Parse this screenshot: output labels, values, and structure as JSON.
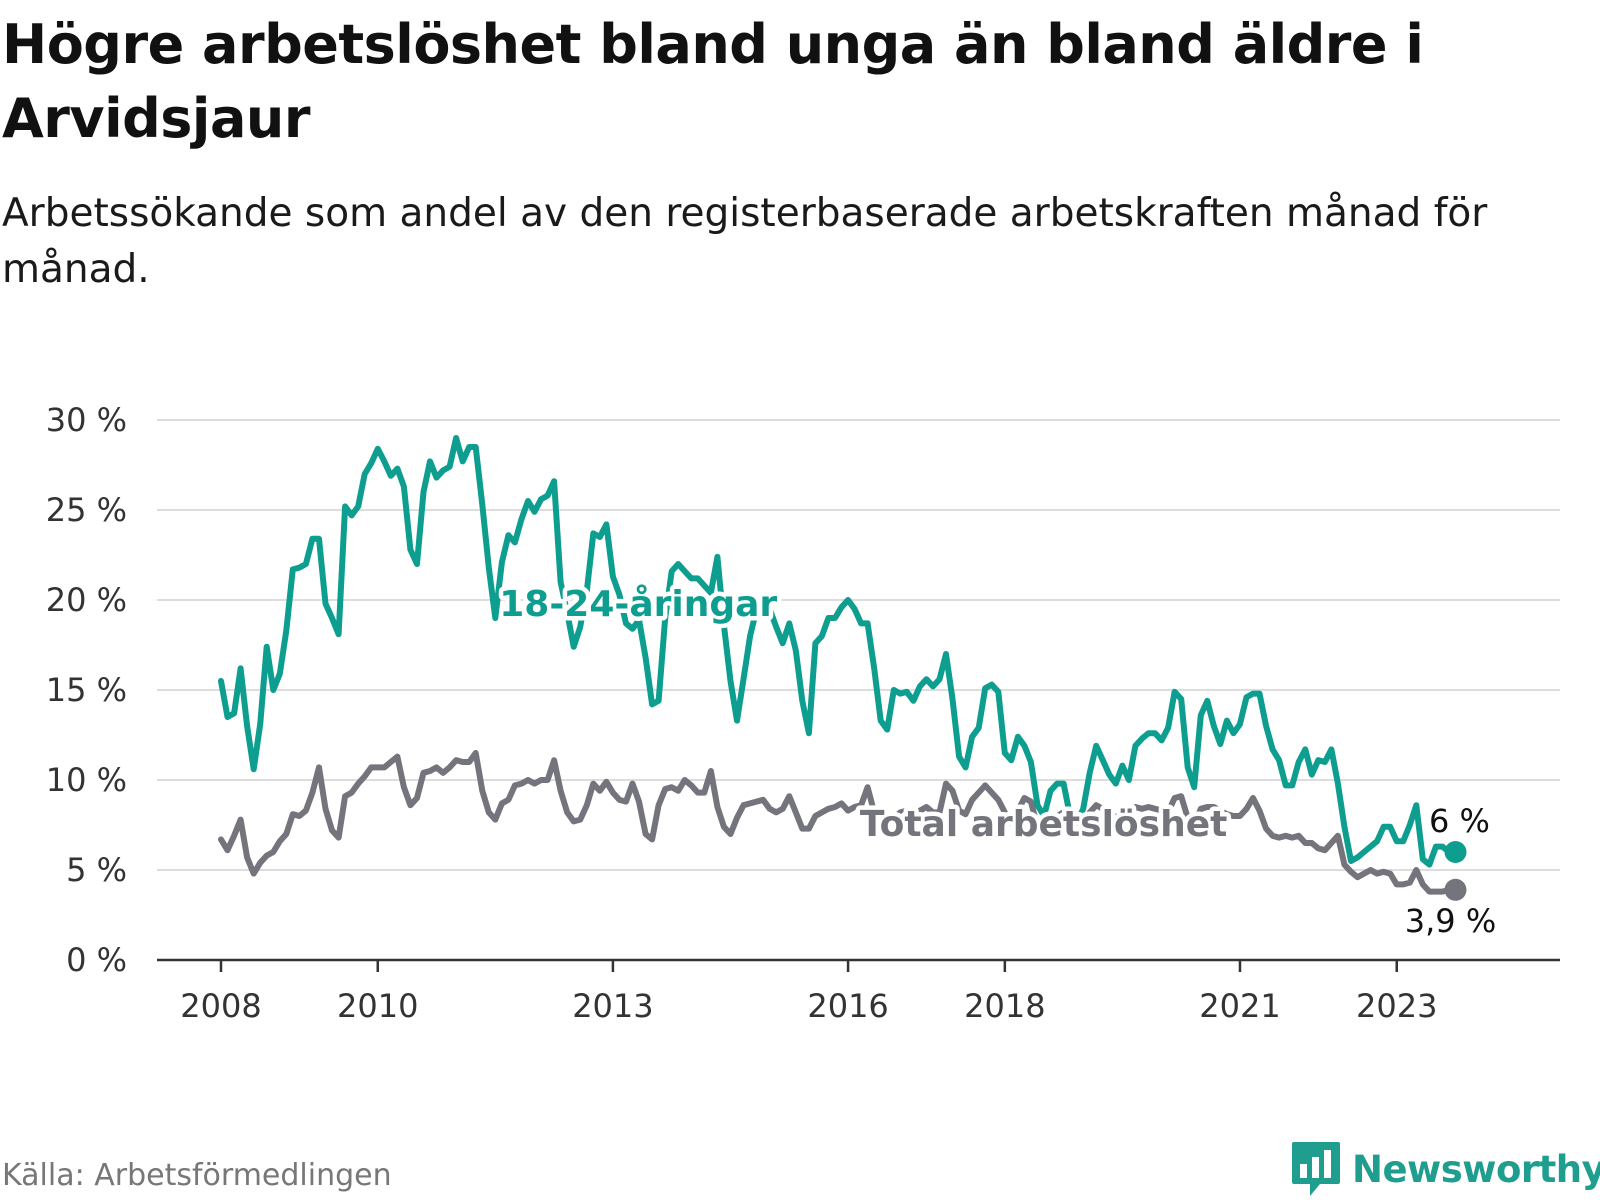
{
  "title": "Högre arbetslöshet bland unga än bland äldre i Arvidsjaur",
  "subtitle": "Arbetssökande som andel av den registerbaserade arbetskraften månad för månad.",
  "source": "Källa: Arbetsförmedlingen",
  "logo": {
    "text": "Newsworthy",
    "icon": "bar-chart-speech-bubble-icon"
  },
  "colors": {
    "youth": "#0e9e90",
    "total": "#74747c",
    "grid": "#dddddd",
    "axis": "#333333"
  },
  "chart_data": {
    "type": "line",
    "title": "Högre arbetslöshet bland unga än bland äldre i Arvidsjaur",
    "xlabel": "",
    "ylabel": "",
    "ylim": [
      0,
      30
    ],
    "yticks": [
      0,
      5,
      10,
      15,
      20,
      25,
      30
    ],
    "ytick_labels": [
      "0 %",
      "5 %",
      "10 %",
      "15 %",
      "20 %",
      "25 %",
      "30 %"
    ],
    "xlim": [
      2008.0,
      2024.33
    ],
    "xticks": [
      2008,
      2010,
      2013,
      2016,
      2018,
      2021,
      2023
    ],
    "xtick_labels": [
      "2008",
      "2010",
      "2013",
      "2016",
      "2018",
      "2021",
      "2023"
    ],
    "grid": true,
    "legend": "inline labels",
    "x_start": 2008.0,
    "x_step": 0.08333,
    "series": [
      {
        "name": "18-24-åringar",
        "color": "#0e9e90",
        "end_label": "6 %",
        "values": [
          15.5,
          13.5,
          13.7,
          16.2,
          13.0,
          10.6,
          13.1,
          17.4,
          15.0,
          15.9,
          18.3,
          21.7,
          21.8,
          22.0,
          23.4,
          23.4,
          19.8,
          19.0,
          18.1,
          25.2,
          24.7,
          25.2,
          27.0,
          27.6,
          28.4,
          27.7,
          26.9,
          27.3,
          26.3,
          22.8,
          22.0,
          26.0,
          27.7,
          26.8,
          27.2,
          27.4,
          29.0,
          27.7,
          28.5,
          28.5,
          25.3,
          21.8,
          19.0,
          22.1,
          23.6,
          23.2,
          24.5,
          25.5,
          24.9,
          25.6,
          25.8,
          26.6,
          21.0,
          19.3,
          17.4,
          18.5,
          20.5,
          23.7,
          23.5,
          24.2,
          21.3,
          20.3,
          18.7,
          18.4,
          18.9,
          16.8,
          14.2,
          14.4,
          19.0,
          21.6,
          22.0,
          21.6,
          21.2,
          21.2,
          20.8,
          20.4,
          22.4,
          18.6,
          15.5,
          13.3,
          15.6,
          18.0,
          19.5,
          19.9,
          19.5,
          18.5,
          17.6,
          18.7,
          17.2,
          14.4,
          12.6,
          17.6,
          18.0,
          19.0,
          19.0,
          19.6,
          20.0,
          19.5,
          18.7,
          18.7,
          16.2,
          13.3,
          12.8,
          15.0,
          14.8,
          14.9,
          14.4,
          15.2,
          15.6,
          15.2,
          15.6,
          17.0,
          14.5,
          11.3,
          10.7,
          12.4,
          12.9,
          15.1,
          15.3,
          14.9,
          11.5,
          11.1,
          12.4,
          11.9,
          11.0,
          8.6,
          8.0,
          9.4,
          9.8,
          9.8,
          8.0,
          7.6,
          8.4,
          10.4,
          11.9,
          11.1,
          10.3,
          9.8,
          10.8,
          10.0,
          11.9,
          12.3,
          12.6,
          12.6,
          12.2,
          12.9,
          14.9,
          14.5,
          10.7,
          9.6,
          13.6,
          14.4,
          13.0,
          12.0,
          13.3,
          12.6,
          13.1,
          14.6,
          14.8,
          14.8,
          13.0,
          11.7,
          11.1,
          9.7,
          9.7,
          11.0,
          11.7,
          10.3,
          11.1,
          11.0,
          11.7,
          9.8,
          7.4,
          5.5,
          5.7,
          6.0,
          6.3,
          6.6,
          7.4,
          7.4,
          6.6,
          6.6,
          7.5,
          8.6,
          5.6,
          5.3,
          6.3,
          6.3,
          6.0,
          6.0
        ]
      },
      {
        "name": "Total arbetslöshet",
        "color": "#74747c",
        "end_label": "3,9 %",
        "values": [
          6.7,
          6.1,
          6.9,
          7.8,
          5.7,
          4.8,
          5.4,
          5.8,
          6.0,
          6.6,
          7.0,
          8.1,
          8.0,
          8.3,
          9.3,
          10.7,
          8.4,
          7.2,
          6.8,
          9.1,
          9.3,
          9.8,
          10.2,
          10.7,
          10.7,
          10.7,
          11.0,
          11.3,
          9.6,
          8.6,
          9.0,
          10.4,
          10.5,
          10.7,
          10.4,
          10.7,
          11.1,
          11.0,
          11.0,
          11.5,
          9.4,
          8.2,
          7.8,
          8.7,
          8.9,
          9.7,
          9.8,
          10.0,
          9.8,
          10.0,
          10.0,
          11.1,
          9.4,
          8.2,
          7.7,
          7.8,
          8.6,
          9.8,
          9.4,
          9.9,
          9.3,
          8.9,
          8.8,
          9.8,
          8.8,
          7.0,
          6.7,
          8.6,
          9.5,
          9.6,
          9.4,
          10.0,
          9.7,
          9.3,
          9.3,
          10.5,
          8.5,
          7.4,
          7.0,
          7.9,
          8.6,
          8.7,
          8.8,
          8.9,
          8.4,
          8.2,
          8.4,
          9.1,
          8.2,
          7.3,
          7.3,
          8.0,
          8.2,
          8.4,
          8.5,
          8.7,
          8.3,
          8.5,
          8.6,
          9.6,
          8.2,
          7.6,
          7.4,
          7.9,
          8.2,
          8.3,
          8.0,
          8.3,
          8.5,
          8.2,
          8.2,
          9.8,
          9.4,
          8.3,
          8.1,
          8.9,
          9.3,
          9.7,
          9.3,
          8.9,
          8.2,
          7.6,
          8.3,
          9.0,
          8.8,
          7.4,
          7.0,
          7.6,
          8.0,
          8.2,
          8.0,
          7.7,
          7.7,
          8.2,
          8.6,
          8.4,
          8.1,
          7.9,
          8.3,
          8.0,
          8.5,
          8.4,
          8.5,
          8.4,
          8.3,
          8.2,
          9.0,
          9.1,
          7.9,
          7.5,
          8.4,
          8.5,
          8.5,
          8.3,
          8.1,
          8.0,
          8.0,
          8.4,
          9.0,
          8.3,
          7.3,
          6.9,
          6.8,
          6.9,
          6.8,
          6.9,
          6.5,
          6.5,
          6.2,
          6.1,
          6.5,
          6.9,
          5.3,
          4.9,
          4.6,
          4.8,
          5.0,
          4.8,
          4.9,
          4.8,
          4.2,
          4.2,
          4.3,
          5.0,
          4.2,
          3.8,
          3.8,
          3.8,
          3.9,
          3.9
        ]
      }
    ]
  }
}
